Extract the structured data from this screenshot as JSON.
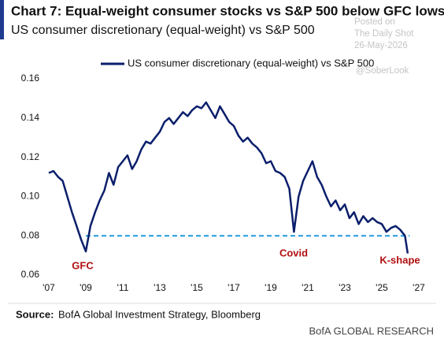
{
  "chart_data": {
    "type": "line",
    "title": "Chart 7: Equal-weight consumer stocks vs S&P 500 below GFC lows",
    "subtitle": "US consumer discretionary (equal-weight) vs S&P 500",
    "x": [
      2007.0,
      2007.25,
      2007.5,
      2007.75,
      2008.0,
      2008.25,
      2008.5,
      2008.75,
      2009.0,
      2009.25,
      2009.5,
      2009.75,
      2010.0,
      2010.25,
      2010.5,
      2010.75,
      2011.0,
      2011.25,
      2011.5,
      2011.75,
      2012.0,
      2012.25,
      2012.5,
      2012.75,
      2013.0,
      2013.25,
      2013.5,
      2013.75,
      2014.0,
      2014.25,
      2014.5,
      2014.75,
      2015.0,
      2015.25,
      2015.5,
      2015.75,
      2016.0,
      2016.25,
      2016.5,
      2016.75,
      2017.0,
      2017.25,
      2017.5,
      2017.75,
      2018.0,
      2018.25,
      2018.5,
      2018.75,
      2019.0,
      2019.25,
      2019.5,
      2019.75,
      2020.0,
      2020.25,
      2020.5,
      2020.75,
      2021.0,
      2021.25,
      2021.5,
      2021.75,
      2022.0,
      2022.25,
      2022.5,
      2022.75,
      2023.0,
      2023.25,
      2023.5,
      2023.75,
      2024.0,
      2024.25,
      2024.5,
      2024.75,
      2025.0,
      2025.25,
      2025.5,
      2025.75,
      2026.0,
      2026.25,
      2026.4
    ],
    "series": [
      {
        "name": "US consumer discretionary (equal-weight) vs S&P 500",
        "color": "#0b1f6b",
        "values": [
          0.112,
          0.113,
          0.11,
          0.108,
          0.1,
          0.092,
          0.085,
          0.078,
          0.072,
          0.085,
          0.092,
          0.098,
          0.103,
          0.112,
          0.106,
          0.115,
          0.118,
          0.121,
          0.114,
          0.118,
          0.124,
          0.128,
          0.127,
          0.13,
          0.133,
          0.138,
          0.14,
          0.137,
          0.14,
          0.143,
          0.141,
          0.144,
          0.146,
          0.145,
          0.148,
          0.144,
          0.14,
          0.146,
          0.142,
          0.138,
          0.136,
          0.131,
          0.128,
          0.13,
          0.127,
          0.125,
          0.122,
          0.117,
          0.118,
          0.113,
          0.112,
          0.11,
          0.104,
          0.082,
          0.1,
          0.108,
          0.113,
          0.118,
          0.11,
          0.106,
          0.1,
          0.095,
          0.098,
          0.093,
          0.096,
          0.089,
          0.092,
          0.086,
          0.09,
          0.087,
          0.089,
          0.087,
          0.086,
          0.082,
          0.084,
          0.085,
          0.083,
          0.08,
          0.071
        ]
      }
    ],
    "xlim": [
      2007,
      2027
    ],
    "xticks": [
      {
        "value": 2007,
        "label": "'07"
      },
      {
        "value": 2009,
        "label": "'09"
      },
      {
        "value": 2011,
        "label": "'11"
      },
      {
        "value": 2013,
        "label": "'13"
      },
      {
        "value": 2015,
        "label": "'15"
      },
      {
        "value": 2017,
        "label": "'17"
      },
      {
        "value": 2019,
        "label": "'19"
      },
      {
        "value": 2021,
        "label": "'21"
      },
      {
        "value": 2023,
        "label": "'23"
      },
      {
        "value": 2025,
        "label": "'25"
      },
      {
        "value": 2027,
        "label": "'27"
      }
    ],
    "ylim": [
      0.06,
      0.16
    ],
    "yticks": [
      0.06,
      0.08,
      {
        "value": 0.1,
        "label": "0.10"
      },
      0.12,
      0.14,
      0.16
    ],
    "reference_line": {
      "value": 0.08,
      "x": [
        2009,
        2026.5
      ],
      "color": "#1e9be0"
    },
    "annotations": [
      "GFC",
      "Covid",
      "K-shape"
    ],
    "source": "BofA Global Investment Strategy, Bloomberg",
    "source_label": "Source:",
    "footer": "BofA GLOBAL RESEARCH",
    "watermark": [
      "Posted on",
      "The Daily Shot",
      "26-May-2026",
      "@SoberLook"
    ]
  }
}
